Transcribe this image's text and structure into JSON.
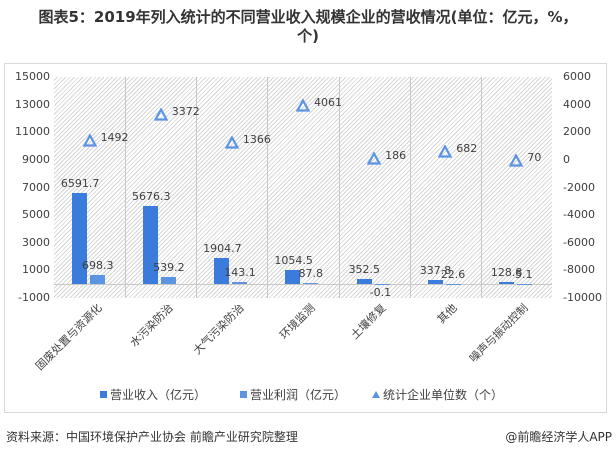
{
  "title": "图表5：2019年列入统计的不同营业收入规模企业的营收情况(单位：亿元，%，个)",
  "title_line1": "图表5：2019年列入统计的不同营业收入规模企业的营收情况(单位：亿元，%，",
  "title_line2": "个)",
  "colors": {
    "revenue": "#3b7bdc",
    "profit": "#5b94e2",
    "count": "#5b94e2"
  },
  "chart_data": {
    "type": "bar",
    "title": "2019年列入统计的不同营业收入规模企业的营收情况",
    "categories": [
      "固废处置与资源化",
      "水污染防治",
      "大气污染防治",
      "环境监测",
      "土壤修复",
      "其他",
      "噪声与振动控制"
    ],
    "series": [
      {
        "name": "营业收入（亿元）",
        "type": "bar",
        "axis": "left",
        "values": [
          6591.7,
          5676.3,
          1904.7,
          1054.5,
          352.5,
          337.8,
          128.8
        ],
        "labels": [
          "6591.7",
          "5676.3",
          "1904.7",
          "1054.5",
          "352.5",
          "337.8",
          "128.8"
        ]
      },
      {
        "name": "营业利润（亿元）",
        "type": "bar",
        "axis": "left",
        "values": [
          698.3,
          539.2,
          143.1,
          87.8,
          -0.1,
          22.6,
          5.1
        ],
        "labels": [
          "698.3",
          "539.2",
          "143.1",
          "87.8",
          "-0.1",
          "22.6",
          "5.1"
        ]
      },
      {
        "name": "统计企业单位数（个）",
        "type": "scatter",
        "marker": "triangle",
        "axis": "right",
        "values": [
          1492,
          3372,
          1366,
          4061,
          186,
          682,
          70
        ],
        "labels": [
          "1492",
          "3372",
          "1366",
          "4061",
          "186",
          "682",
          "70"
        ]
      }
    ],
    "left_axis": {
      "ylim": [
        -1000,
        15000
      ],
      "ticks": [
        "15000",
        "13000",
        "11000",
        "9000",
        "7000",
        "5000",
        "3000",
        "1000",
        "-1000"
      ]
    },
    "right_axis": {
      "ylim": [
        -10000,
        6000
      ],
      "ticks": [
        "6000",
        "4000",
        "2000",
        "0",
        "-2000",
        "-4000",
        "-6000",
        "-8000",
        "-10000"
      ]
    },
    "legend_position": "bottom",
    "grid": false
  },
  "legend": [
    "营业收入（亿元）",
    "营业利润（亿元）",
    "统计企业单位数（个）"
  ],
  "footer": {
    "source": "资料来源：中国环境保护产业协会 前瞻产业研究院整理",
    "credit": "@前瞻经济学人APP"
  }
}
